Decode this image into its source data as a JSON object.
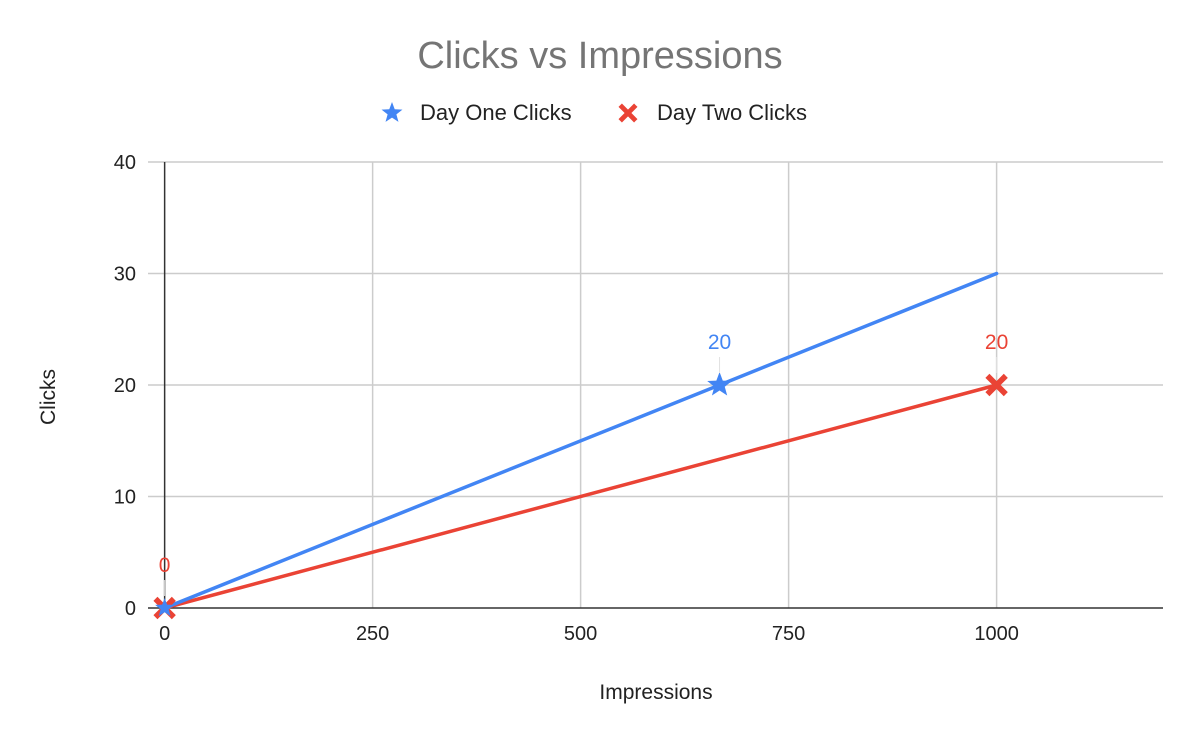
{
  "chart_data": {
    "type": "line",
    "title": "Clicks vs Impressions",
    "xlabel": "Impressions",
    "ylabel": "Clicks",
    "xlim": [
      -20,
      1200
    ],
    "ylim": [
      0,
      40
    ],
    "x_ticks": [
      0,
      250,
      500,
      750,
      1000
    ],
    "y_ticks": [
      0,
      10,
      20,
      30,
      40
    ],
    "grid": true,
    "legend_position": "top",
    "series": [
      {
        "name": "Day One Clicks",
        "color": "#4285f4",
        "marker": "star",
        "points": [
          {
            "x": 0,
            "y": 0
          },
          {
            "x": 667,
            "y": 20
          },
          {
            "x": 1000,
            "y": 30
          }
        ],
        "labels": [
          {
            "x": 667,
            "y": 20,
            "text": "20"
          }
        ]
      },
      {
        "name": "Day Two Clicks",
        "color": "#ea4335",
        "marker": "x",
        "points": [
          {
            "x": 0,
            "y": 0
          },
          {
            "x": 1000,
            "y": 20
          }
        ],
        "labels": [
          {
            "x": 0,
            "y": 0,
            "text": "0"
          },
          {
            "x": 1000,
            "y": 20,
            "text": "20"
          }
        ]
      }
    ]
  }
}
